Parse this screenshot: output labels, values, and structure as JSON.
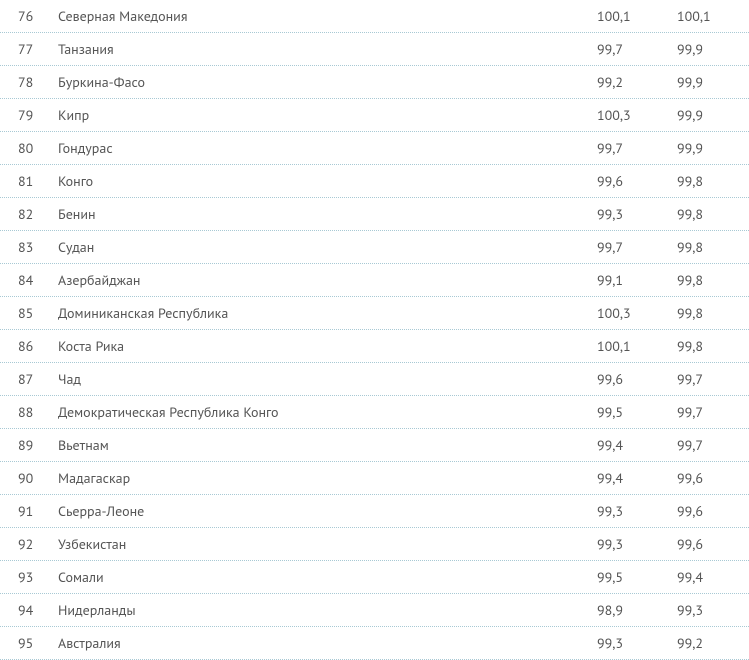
{
  "text_color": "#555555",
  "divider_color": "#a8c9d4",
  "background_color": "#ffffff",
  "font_size": 14,
  "rows": [
    {
      "rank": "76",
      "country": "Северная Македония",
      "val1": "100,1",
      "val2": "100,1"
    },
    {
      "rank": "77",
      "country": "Танзания",
      "val1": "99,7",
      "val2": "99,9"
    },
    {
      "rank": "78",
      "country": "Буркина-Фасо",
      "val1": "99,2",
      "val2": "99,9"
    },
    {
      "rank": "79",
      "country": "Кипр",
      "val1": "100,3",
      "val2": "99,9"
    },
    {
      "rank": "80",
      "country": "Гондурас",
      "val1": "99,7",
      "val2": "99,9"
    },
    {
      "rank": "81",
      "country": "Конго",
      "val1": "99,6",
      "val2": "99,8"
    },
    {
      "rank": "82",
      "country": "Бенин",
      "val1": "99,3",
      "val2": "99,8"
    },
    {
      "rank": "83",
      "country": "Судан",
      "val1": "99,7",
      "val2": "99,8"
    },
    {
      "rank": "84",
      "country": "Азербайджан",
      "val1": "99,1",
      "val2": "99,8"
    },
    {
      "rank": "85",
      "country": "Доминиканская Республика",
      "val1": "100,3",
      "val2": "99,8"
    },
    {
      "rank": "86",
      "country": "Коста Рика",
      "val1": "100,1",
      "val2": "99,8"
    },
    {
      "rank": "87",
      "country": "Чад",
      "val1": "99,6",
      "val2": "99,7"
    },
    {
      "rank": "88",
      "country": "Демократическая Республика Конго",
      "val1": "99,5",
      "val2": "99,7"
    },
    {
      "rank": "89",
      "country": "Вьетнам",
      "val1": "99,4",
      "val2": "99,7"
    },
    {
      "rank": "90",
      "country": "Мадагаскар",
      "val1": "99,4",
      "val2": "99,6"
    },
    {
      "rank": "91",
      "country": "Сьерра-Леоне",
      "val1": "99,3",
      "val2": "99,6"
    },
    {
      "rank": "92",
      "country": "Узбекистан",
      "val1": "99,3",
      "val2": "99,6"
    },
    {
      "rank": "93",
      "country": "Сомали",
      "val1": "99,5",
      "val2": "99,4"
    },
    {
      "rank": "94",
      "country": "Нидерланды",
      "val1": "98,9",
      "val2": "99,3"
    },
    {
      "rank": "95",
      "country": "Австралия",
      "val1": "99,3",
      "val2": "99,2"
    }
  ]
}
